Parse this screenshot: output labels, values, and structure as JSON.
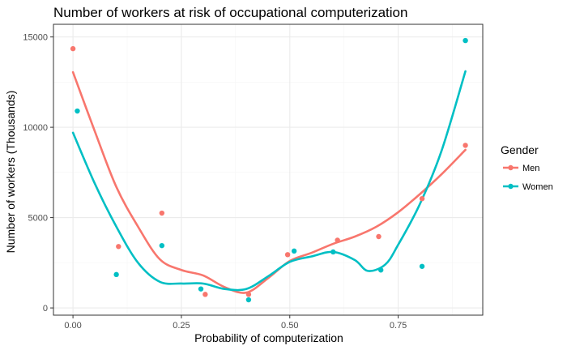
{
  "chart_data": {
    "type": "scatter",
    "title": "Number of workers at risk of occupational computerization",
    "xlabel": "Probability of computerization",
    "ylabel": "Number of workers (Thousands)",
    "xlim": [
      -0.045,
      0.945
    ],
    "ylim": [
      -400,
      15700
    ],
    "x_ticks": [
      0,
      0.25,
      0.5,
      0.75
    ],
    "x_tick_labels": [
      "0.00",
      "0.25",
      "0.50",
      "0.75"
    ],
    "y_ticks": [
      0,
      5000,
      10000,
      15000
    ],
    "y_tick_labels": [
      "0",
      "5000",
      "10000",
      "15000"
    ],
    "x_minor_ticks": [
      0.125,
      0.375,
      0.625,
      0.875
    ],
    "y_minor_ticks": [
      2500,
      7500,
      12500
    ],
    "grid": true,
    "legend": {
      "title": "Gender",
      "position": "right"
    },
    "series": [
      {
        "name": "Men",
        "color": "#F8766D",
        "points": [
          {
            "x": 0.0,
            "y": 14350
          },
          {
            "x": 0.105,
            "y": 3400
          },
          {
            "x": 0.205,
            "y": 5250
          },
          {
            "x": 0.305,
            "y": 750
          },
          {
            "x": 0.405,
            "y": 750
          },
          {
            "x": 0.495,
            "y": 2950
          },
          {
            "x": 0.61,
            "y": 3750
          },
          {
            "x": 0.705,
            "y": 3950
          },
          {
            "x": 0.805,
            "y": 6050
          },
          {
            "x": 0.905,
            "y": 9000
          }
        ],
        "smooth": [
          {
            "x": 0.0,
            "y": 13050
          },
          {
            "x": 0.05,
            "y": 9800
          },
          {
            "x": 0.1,
            "y": 6700
          },
          {
            "x": 0.15,
            "y": 4500
          },
          {
            "x": 0.2,
            "y": 2700
          },
          {
            "x": 0.25,
            "y": 2100
          },
          {
            "x": 0.3,
            "y": 1800
          },
          {
            "x": 0.35,
            "y": 1150
          },
          {
            "x": 0.4,
            "y": 850
          },
          {
            "x": 0.45,
            "y": 1650
          },
          {
            "x": 0.5,
            "y": 2600
          },
          {
            "x": 0.55,
            "y": 3050
          },
          {
            "x": 0.6,
            "y": 3550
          },
          {
            "x": 0.65,
            "y": 3950
          },
          {
            "x": 0.7,
            "y": 4500
          },
          {
            "x": 0.75,
            "y": 5300
          },
          {
            "x": 0.8,
            "y": 6300
          },
          {
            "x": 0.85,
            "y": 7400
          },
          {
            "x": 0.905,
            "y": 8750
          }
        ]
      },
      {
        "name": "Women",
        "color": "#00BFC4",
        "points": [
          {
            "x": 0.01,
            "y": 10900
          },
          {
            "x": 0.1,
            "y": 1850
          },
          {
            "x": 0.205,
            "y": 3450
          },
          {
            "x": 0.295,
            "y": 1050
          },
          {
            "x": 0.405,
            "y": 450
          },
          {
            "x": 0.51,
            "y": 3150
          },
          {
            "x": 0.6,
            "y": 3100
          },
          {
            "x": 0.71,
            "y": 2100
          },
          {
            "x": 0.805,
            "y": 2300
          },
          {
            "x": 0.905,
            "y": 14800
          }
        ],
        "smooth": [
          {
            "x": 0.0,
            "y": 9700
          },
          {
            "x": 0.05,
            "y": 6900
          },
          {
            "x": 0.1,
            "y": 4500
          },
          {
            "x": 0.15,
            "y": 2500
          },
          {
            "x": 0.2,
            "y": 1450
          },
          {
            "x": 0.25,
            "y": 1350
          },
          {
            "x": 0.3,
            "y": 1350
          },
          {
            "x": 0.35,
            "y": 1050
          },
          {
            "x": 0.4,
            "y": 1050
          },
          {
            "x": 0.45,
            "y": 1750
          },
          {
            "x": 0.5,
            "y": 2550
          },
          {
            "x": 0.55,
            "y": 2850
          },
          {
            "x": 0.6,
            "y": 3100
          },
          {
            "x": 0.65,
            "y": 2650
          },
          {
            "x": 0.68,
            "y": 2050
          },
          {
            "x": 0.72,
            "y": 2400
          },
          {
            "x": 0.75,
            "y": 3500
          },
          {
            "x": 0.8,
            "y": 5750
          },
          {
            "x": 0.85,
            "y": 8700
          },
          {
            "x": 0.905,
            "y": 13100
          }
        ]
      }
    ]
  },
  "colors": {
    "panel_border": "#333333",
    "grid_major": "#ebebeb",
    "grid_minor": "#f5f5f5",
    "tick": "#333333"
  }
}
